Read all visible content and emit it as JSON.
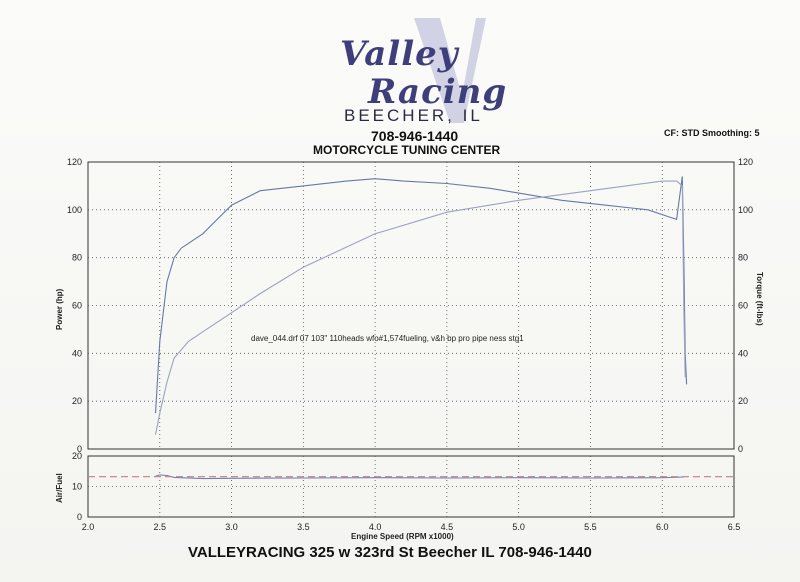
{
  "header": {
    "logo_line1": "Valley",
    "logo_line2": "Racing",
    "city": "BEECHER, IL",
    "phone": "708-946-1440",
    "subtitle": "MOTORCYCLE TUNING CENTER",
    "cf_info": "CF: STD  Smoothing: 5"
  },
  "footer": {
    "text": "VALLEYRACING 325 w 323rd St Beecher IL 708-946-1440"
  },
  "colors": {
    "power": "#9aa3bf",
    "torque": "#6878a6",
    "afr": "#7380ad",
    "target": "#c0808a",
    "grid": "#555555"
  },
  "chart_data": [
    {
      "type": "line",
      "annotation": "dave_044.drf 07 103\" 110heads wfo#1,574fueling, v&h bp pro pipe  ness stg1",
      "xlabel": "Engine Speed (RPM x1000)",
      "ylabel_left": "Power (hp)",
      "ylabel_right": "Torque (ft-lbs)",
      "xlim": [
        2.0,
        6.5
      ],
      "ylim": [
        0,
        120
      ],
      "xticks": [
        "2.0",
        "2.5",
        "3.0",
        "3.5",
        "4.0",
        "4.5",
        "5.0",
        "5.5",
        "6.0",
        "6.5"
      ],
      "yticks": [
        "0",
        "20",
        "40",
        "60",
        "80",
        "100",
        "120"
      ],
      "grid": true,
      "series": [
        {
          "key": "torque",
          "x": [
            2.47,
            2.5,
            2.55,
            2.6,
            2.65,
            2.7,
            2.8,
            2.9,
            3.0,
            3.2,
            3.5,
            3.8,
            4.0,
            4.2,
            4.5,
            4.8,
            5.0,
            5.3,
            5.6,
            5.9,
            6.0,
            6.1,
            6.14,
            6.15,
            6.16,
            6.17
          ],
          "y": [
            15,
            45,
            70,
            80,
            84,
            86,
            90,
            96,
            102,
            108,
            110,
            112,
            113,
            112,
            111,
            109,
            107,
            104,
            102,
            100,
            98,
            96,
            114,
            80,
            40,
            27
          ]
        },
        {
          "key": "power",
          "x": [
            2.47,
            2.5,
            2.55,
            2.6,
            2.7,
            2.8,
            3.0,
            3.2,
            3.5,
            4.0,
            4.5,
            5.0,
            5.5,
            6.0,
            6.1,
            6.14,
            6.15,
            6.16
          ],
          "y": [
            6,
            15,
            28,
            38,
            45,
            49,
            57,
            65,
            76,
            90,
            99,
            104,
            108,
            112,
            112,
            110,
            60,
            30
          ]
        }
      ]
    },
    {
      "type": "line",
      "ylabel": "Air/Fuel",
      "xlim": [
        2.0,
        6.5
      ],
      "ylim": [
        0,
        20
      ],
      "yticks": [
        "0",
        "10",
        "20"
      ],
      "series": [
        {
          "key": "afr",
          "x": [
            2.47,
            2.5,
            2.55,
            2.6,
            2.8,
            3.0,
            3.5,
            4.0,
            4.5,
            5.0,
            5.5,
            6.0,
            6.15
          ],
          "y": [
            13.4,
            13.8,
            13.6,
            13.0,
            12.6,
            12.7,
            12.8,
            12.9,
            12.8,
            12.9,
            12.8,
            12.9,
            13.1
          ]
        },
        {
          "key": "target",
          "x": [
            2.0,
            6.5
          ],
          "y": [
            13.2,
            13.2
          ]
        }
      ]
    }
  ]
}
